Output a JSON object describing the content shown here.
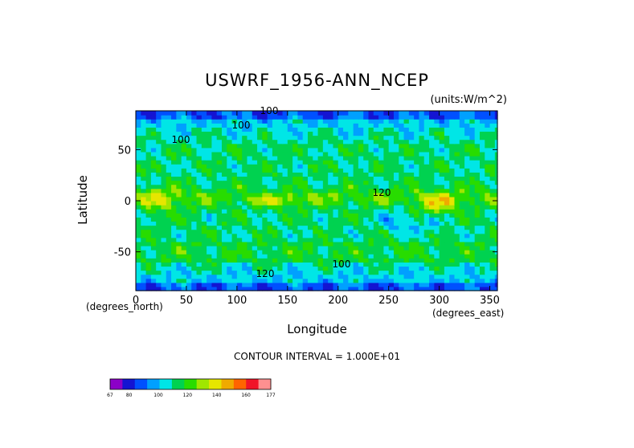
{
  "chart_data": {
    "type": "heatmap",
    "title": "USWRF_1956-ANN_NCEP",
    "units_label": "(units:W/m^2)",
    "xlabel": "Longitude",
    "ylabel": "Latitude",
    "x_axis_note": "(degrees_east)",
    "y_axis_note": "(degrees_north)",
    "xlim": [
      0,
      357.5
    ],
    "ylim": [
      -88,
      88
    ],
    "x_ticks": [
      0,
      50,
      100,
      150,
      200,
      250,
      300,
      350
    ],
    "y_ticks": [
      -50,
      0,
      50
    ],
    "contour_interval_text": "CONTOUR INTERVAL = 1.000E+01",
    "contour_labels": [
      "100",
      "100",
      "100",
      "120",
      "100",
      "120"
    ],
    "colorbar": {
      "min": 67,
      "max": 177,
      "tick_labels": [
        "67",
        "80",
        "100",
        "120",
        "140",
        "160",
        "177"
      ],
      "colors": [
        "#8c00c8",
        "#1414d2",
        "#0050ff",
        "#00a0ff",
        "#00e6e6",
        "#00d250",
        "#28dc00",
        "#a0e600",
        "#e6e600",
        "#f0aa00",
        "#ff6400",
        "#f01428",
        "#ff9090"
      ]
    }
  }
}
